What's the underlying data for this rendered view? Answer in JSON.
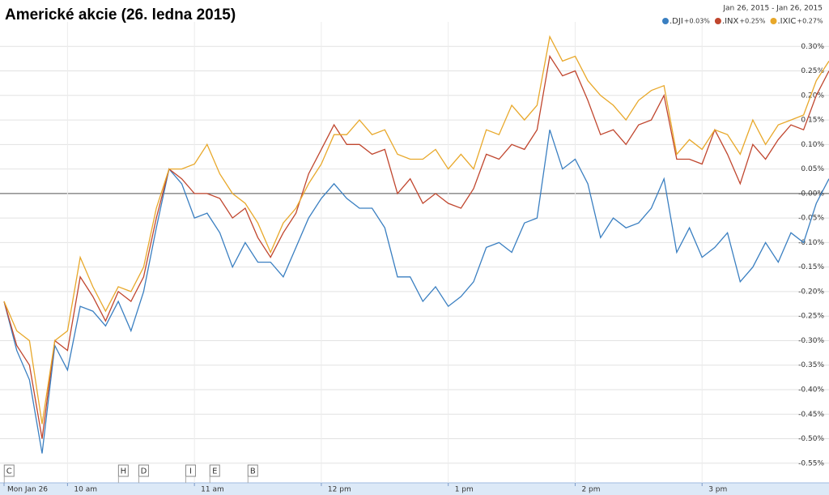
{
  "chart_data": {
    "type": "line",
    "title": "Americké akcie (26. ledna 2015)",
    "date_range": "Jan 26, 2015  -  Jan 26, 2015",
    "x": [
      9.5,
      9.6,
      9.7,
      9.8,
      9.9,
      10.0,
      10.1,
      10.2,
      10.3,
      10.4,
      10.5,
      10.6,
      10.7,
      10.8,
      10.9,
      11.0,
      11.1,
      11.2,
      11.3,
      11.4,
      11.5,
      11.6,
      11.7,
      11.8,
      11.9,
      12.0,
      12.1,
      12.2,
      12.3,
      12.4,
      12.5,
      12.6,
      12.7,
      12.8,
      12.9,
      13.0,
      13.1,
      13.2,
      13.3,
      13.4,
      13.5,
      13.6,
      13.7,
      13.8,
      13.9,
      14.0,
      14.1,
      14.2,
      14.3,
      14.4,
      14.5,
      14.6,
      14.7,
      14.8,
      14.9,
      15.0,
      15.1,
      15.2,
      15.3,
      15.4,
      15.5,
      15.6,
      15.7,
      15.8,
      15.9,
      16.0
    ],
    "xlim": [
      9.5,
      16
    ],
    "xticks": [
      {
        "value": 9.5,
        "label": "Mon Jan 26"
      },
      {
        "value": 10,
        "label": "10 am"
      },
      {
        "value": 11,
        "label": "11 am"
      },
      {
        "value": 12,
        "label": "12 pm"
      },
      {
        "value": 13,
        "label": "1 pm"
      },
      {
        "value": 14,
        "label": "2 pm"
      },
      {
        "value": 15,
        "label": "3 pm"
      }
    ],
    "ylim": [
      -0.59,
      0.35
    ],
    "yticks": [
      {
        "value": 0.3,
        "label": "0.30%"
      },
      {
        "value": 0.25,
        "label": "0.25%"
      },
      {
        "value": 0.2,
        "label": "0.20%"
      },
      {
        "value": 0.15,
        "label": "0.15%"
      },
      {
        "value": 0.1,
        "label": "0.10%"
      },
      {
        "value": 0.05,
        "label": "0.05%"
      },
      {
        "value": 0,
        "label": "-0.00%"
      },
      {
        "value": -0.05,
        "label": "-0.05%"
      },
      {
        "value": -0.1,
        "label": "-0.10%"
      },
      {
        "value": -0.15,
        "label": "-0.15%"
      },
      {
        "value": -0.2,
        "label": "-0.20%"
      },
      {
        "value": -0.25,
        "label": "-0.25%"
      },
      {
        "value": -0.3,
        "label": "-0.30%"
      },
      {
        "value": -0.35,
        "label": "-0.35%"
      },
      {
        "value": -0.4,
        "label": "-0.40%"
      },
      {
        "value": -0.45,
        "label": "-0.45%"
      },
      {
        "value": -0.5,
        "label": "-0.50%"
      },
      {
        "value": -0.55,
        "label": "-0.55%"
      }
    ],
    "grid": true,
    "series": [
      {
        "name": ".DJI",
        "change": "+0.03%",
        "color": "#3a7fc1",
        "values": [
          -0.22,
          -0.32,
          -0.38,
          -0.53,
          -0.31,
          -0.36,
          -0.23,
          -0.24,
          -0.27,
          -0.22,
          -0.28,
          -0.2,
          -0.07,
          0.05,
          0.02,
          -0.05,
          -0.04,
          -0.08,
          -0.15,
          -0.1,
          -0.14,
          -0.14,
          -0.17,
          -0.11,
          -0.05,
          -0.01,
          0.02,
          -0.01,
          -0.03,
          -0.03,
          -0.07,
          -0.17,
          -0.17,
          -0.22,
          -0.19,
          -0.23,
          -0.21,
          -0.18,
          -0.11,
          -0.1,
          -0.12,
          -0.06,
          -0.05,
          0.13,
          0.05,
          0.07,
          0.02,
          -0.09,
          -0.05,
          -0.07,
          -0.06,
          -0.03,
          0.03,
          -0.12,
          -0.07,
          -0.13,
          -0.11,
          -0.08,
          -0.18,
          -0.15,
          -0.1,
          -0.14,
          -0.08,
          -0.1,
          -0.02,
          0.03
        ]
      },
      {
        "name": ".INX",
        "change": "+0.25%",
        "color": "#c0462e",
        "values": [
          -0.22,
          -0.31,
          -0.35,
          -0.5,
          -0.3,
          -0.32,
          -0.17,
          -0.21,
          -0.26,
          -0.2,
          -0.22,
          -0.17,
          -0.05,
          0.05,
          0.03,
          0.0,
          0.0,
          -0.01,
          -0.05,
          -0.03,
          -0.09,
          -0.13,
          -0.08,
          -0.04,
          0.04,
          0.09,
          0.14,
          0.1,
          0.1,
          0.08,
          0.09,
          0.0,
          0.03,
          -0.02,
          0.0,
          -0.02,
          -0.03,
          0.01,
          0.08,
          0.07,
          0.1,
          0.09,
          0.13,
          0.28,
          0.24,
          0.25,
          0.19,
          0.12,
          0.13,
          0.1,
          0.14,
          0.15,
          0.2,
          0.07,
          0.07,
          0.06,
          0.13,
          0.08,
          0.02,
          0.1,
          0.07,
          0.11,
          0.14,
          0.13,
          0.2,
          0.25
        ]
      },
      {
        "name": ".IXIC",
        "change": "+0.27%",
        "color": "#e8a82a",
        "values": [
          -0.22,
          -0.28,
          -0.3,
          -0.47,
          -0.3,
          -0.28,
          -0.13,
          -0.19,
          -0.24,
          -0.19,
          -0.2,
          -0.15,
          -0.03,
          0.05,
          0.05,
          0.06,
          0.1,
          0.04,
          0.0,
          -0.02,
          -0.06,
          -0.12,
          -0.06,
          -0.03,
          0.02,
          0.06,
          0.12,
          0.12,
          0.15,
          0.12,
          0.13,
          0.08,
          0.07,
          0.07,
          0.09,
          0.05,
          0.08,
          0.05,
          0.13,
          0.12,
          0.18,
          0.15,
          0.18,
          0.32,
          0.27,
          0.28,
          0.23,
          0.2,
          0.18,
          0.15,
          0.19,
          0.21,
          0.22,
          0.08,
          0.11,
          0.09,
          0.13,
          0.12,
          0.08,
          0.15,
          0.1,
          0.14,
          0.15,
          0.16,
          0.23,
          0.27
        ]
      }
    ],
    "event_markers": [
      {
        "label": "C",
        "x": 9.54
      },
      {
        "label": "H",
        "x": 10.44
      },
      {
        "label": "D",
        "x": 10.6
      },
      {
        "label": "I",
        "x": 10.97
      },
      {
        "label": "E",
        "x": 11.16
      },
      {
        "label": "B",
        "x": 11.46
      }
    ]
  }
}
